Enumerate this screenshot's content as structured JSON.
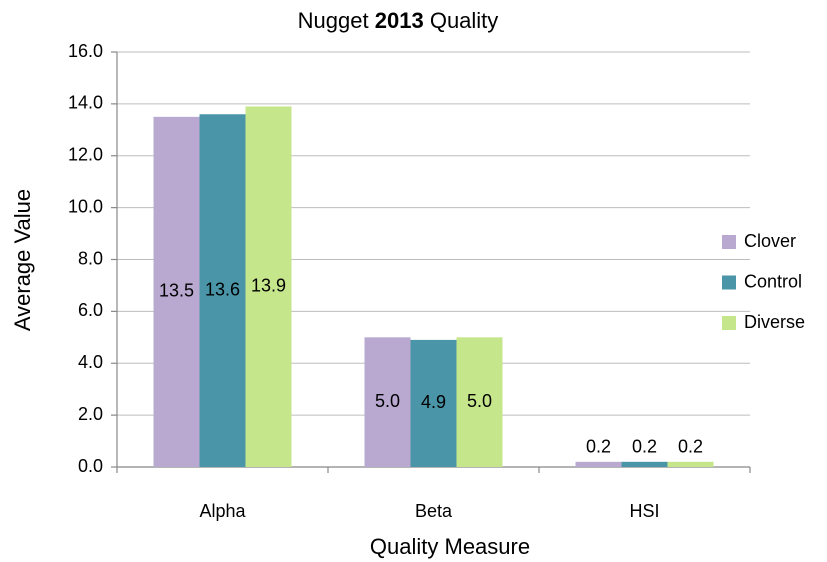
{
  "chart_data": {
    "type": "bar",
    "title": [
      "Nugget",
      "2013",
      "Quality"
    ],
    "x_label": "Quality Measure",
    "y_label": "Average Value",
    "categories": [
      "Alpha",
      "Beta",
      "HSI"
    ],
    "series": [
      {
        "name": "Clover",
        "color": "#b9a9d1",
        "values": [
          13.5,
          5.0,
          0.2
        ],
        "value_labels": [
          "13.5",
          "5.0",
          "0.2"
        ]
      },
      {
        "name": "Control",
        "color": "#4a95a8",
        "values": [
          13.6,
          4.9,
          0.2
        ],
        "value_labels": [
          "13.6",
          "4.9",
          "0.2"
        ]
      },
      {
        "name": "Diverse",
        "color": "#c6e68c",
        "values": [
          13.9,
          5.0,
          0.2
        ],
        "value_labels": [
          "13.9",
          "5.0",
          "0.2"
        ]
      }
    ],
    "ylim": [
      0,
      16
    ],
    "yticks": [
      {
        "value": 0,
        "label": "0.0"
      },
      {
        "value": 2,
        "label": "2.0"
      },
      {
        "value": 4,
        "label": "4.0"
      },
      {
        "value": 6,
        "label": "6.0"
      },
      {
        "value": 8,
        "label": "8.0"
      },
      {
        "value": 10,
        "label": "10.0"
      },
      {
        "value": 12,
        "label": "12.0"
      },
      {
        "value": 14,
        "label": "14.0"
      },
      {
        "value": 16,
        "label": "16.0"
      }
    ],
    "grid": true,
    "legend": "right"
  }
}
